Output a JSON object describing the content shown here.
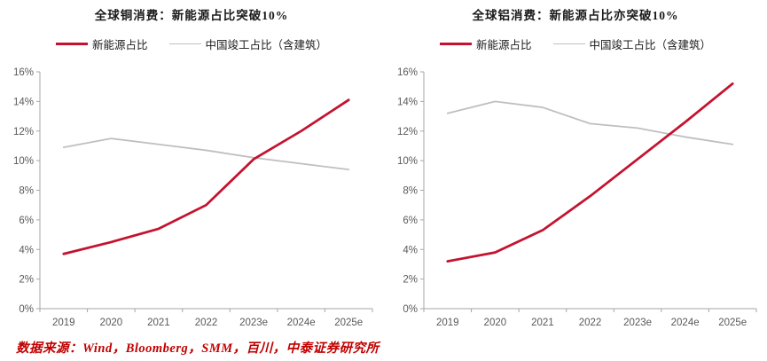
{
  "page": {
    "background": "#ffffff"
  },
  "colors": {
    "new_energy": "#c4122f",
    "china_completion": "#bfbfbf",
    "axis": "#a6a6a6",
    "tick_label": "#595959",
    "title_text": "#1a1a1a",
    "source_text": "#c00000"
  },
  "chart_data": [
    {
      "type": "line",
      "title": "全球铜消费：新能源占比突破10%",
      "categories": [
        "2019",
        "2020",
        "2021",
        "2022",
        "2023e",
        "2024e",
        "2025e"
      ],
      "series": [
        {
          "name": "新能源占比",
          "color_key": "new_energy",
          "values": [
            3.7,
            4.5,
            5.4,
            7.0,
            10.1,
            12.0,
            14.1
          ]
        },
        {
          "name": "中国竣工占比（含建筑）",
          "color_key": "china_completion",
          "values": [
            10.9,
            11.5,
            11.1,
            10.7,
            10.2,
            9.8,
            9.4
          ]
        }
      ],
      "xlabel": "",
      "ylabel": "",
      "ylim": [
        0,
        16
      ],
      "ytick_step": 2,
      "ytick_suffix": "%",
      "grid": false,
      "legend_position": "top"
    },
    {
      "type": "line",
      "title": "全球铝消费：新能源占比亦突破10%",
      "categories": [
        "2019",
        "2020",
        "2021",
        "2022",
        "2023e",
        "2024e",
        "2025e"
      ],
      "series": [
        {
          "name": "新能源占比",
          "color_key": "new_energy",
          "values": [
            3.2,
            3.8,
            5.3,
            7.6,
            10.1,
            12.6,
            15.2
          ]
        },
        {
          "name": "中国竣工占比（含建筑）",
          "color_key": "china_completion",
          "values": [
            13.2,
            14.0,
            13.6,
            12.5,
            12.2,
            11.6,
            11.1
          ]
        }
      ],
      "xlabel": "",
      "ylabel": "",
      "ylim": [
        0,
        16
      ],
      "ytick_step": 2,
      "ytick_suffix": "%",
      "grid": false,
      "legend_position": "top"
    }
  ],
  "source_note": "数据来源：Wind，Bloomberg，SMM，百川，中泰证券研究所"
}
